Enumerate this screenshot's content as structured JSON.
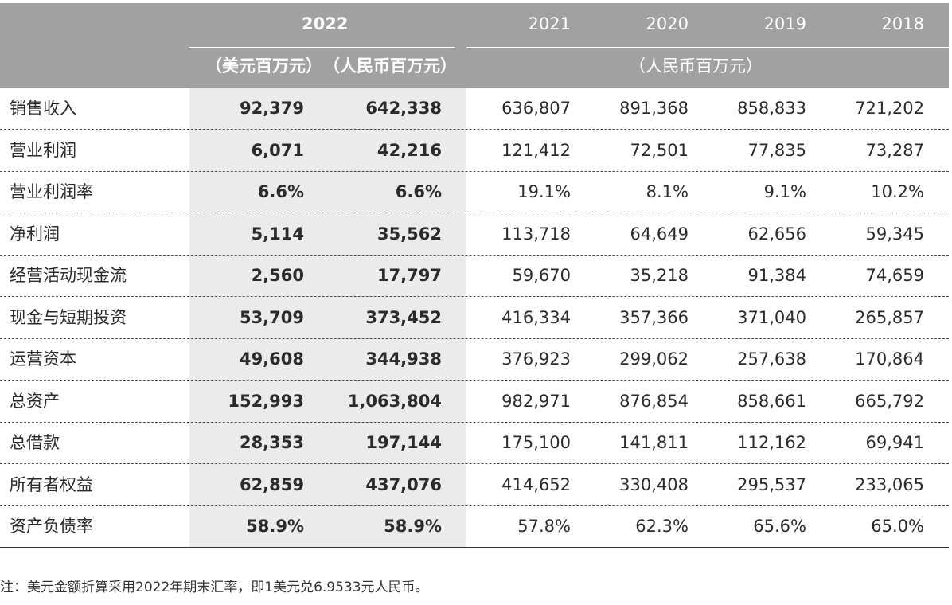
{
  "header": {
    "year_2022": "2022",
    "unit_usd": "（美元百万元）",
    "unit_rmb_2022": "（人民币百万元）",
    "years_other": [
      "2021",
      "2020",
      "2019",
      "2018"
    ],
    "unit_rmb_other": "（人民币百万元）"
  },
  "rows": [
    {
      "label": "销售收入",
      "values": [
        "92,379",
        "642,338",
        "636,807",
        "891,368",
        "858,833",
        "721,202"
      ]
    },
    {
      "label": "营业利润",
      "values": [
        "6,071",
        "42,216",
        "121,412",
        "72,501",
        "77,835",
        "73,287"
      ]
    },
    {
      "label": "营业利润率",
      "values": [
        "6.6%",
        "6.6%",
        "19.1%",
        "8.1%",
        "9.1%",
        "10.2%"
      ]
    },
    {
      "label": "净利润",
      "values": [
        "5,114",
        "35,562",
        "113,718",
        "64,649",
        "62,656",
        "59,345"
      ]
    },
    {
      "label": "经营活动现金流",
      "values": [
        "2,560",
        "17,797",
        "59,670",
        "35,218",
        "91,384",
        "74,659"
      ]
    },
    {
      "label": "现金与短期投资",
      "values": [
        "53,709",
        "373,452",
        "416,334",
        "357,366",
        "371,040",
        "265,857"
      ]
    },
    {
      "label": "运营资本",
      "values": [
        "49,608",
        "344,938",
        "376,923",
        "299,062",
        "257,638",
        "170,864"
      ]
    },
    {
      "label": "总资产",
      "values": [
        "152,993",
        "1,063,804",
        "982,971",
        "876,854",
        "858,661",
        "665,792"
      ]
    },
    {
      "label": "总借款",
      "values": [
        "28,353",
        "197,144",
        "175,100",
        "141,811",
        "112,162",
        "69,941"
      ]
    },
    {
      "label": "所有者权益",
      "values": [
        "62,859",
        "437,076",
        "414,652",
        "330,408",
        "295,537",
        "233,065"
      ]
    },
    {
      "label": "资产负债率",
      "values": [
        "58.9%",
        "58.9%",
        "57.8%",
        "62.3%",
        "65.6%",
        "65.0%"
      ]
    }
  ],
  "footnote": "注：美元金额折算采用2022年期末汇率，即1美元兑6.9533元人民币。",
  "colors": {
    "header_bg": "#a1a1a1",
    "highlight_col_bg": "#ebebeb",
    "text": "#2b2b2b"
  }
}
